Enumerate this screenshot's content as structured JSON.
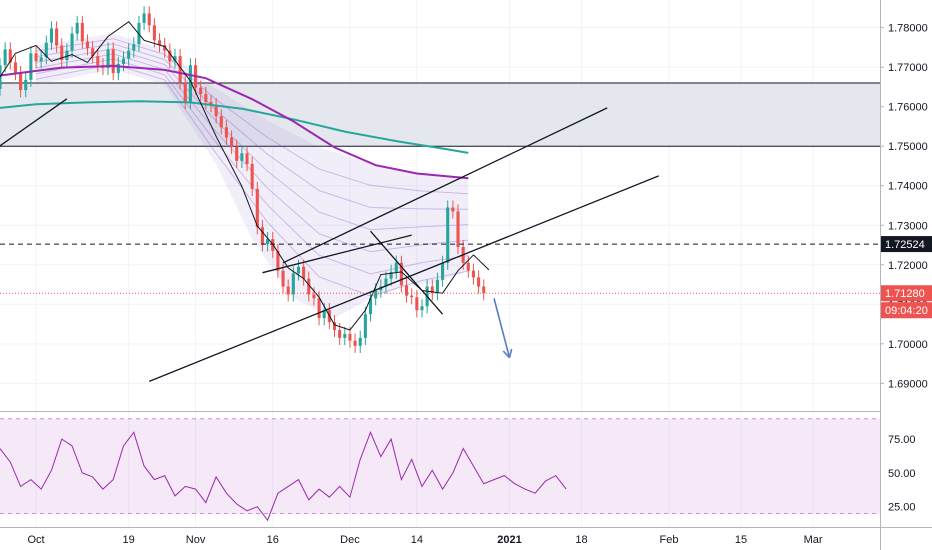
{
  "chart_data": {
    "type": "candlestick",
    "title": "",
    "price_axis": {
      "ticks": [
        "1.78000",
        "1.77000",
        "1.76000",
        "1.75000",
        "1.74000",
        "1.73000",
        "1.72000",
        "1.71000",
        "1.70000",
        "1.69000"
      ],
      "tick_values": [
        1.78,
        1.77,
        1.76,
        1.75,
        1.74,
        1.73,
        1.72,
        1.71,
        1.7,
        1.69
      ],
      "range": [
        1.683,
        1.787
      ]
    },
    "rsi_axis": {
      "ticks": [
        "75.00",
        "50.00",
        "25.00"
      ],
      "tick_values": [
        75,
        50,
        25
      ],
      "range": [
        10,
        95
      ]
    },
    "time_axis": {
      "labels": [
        "Oct",
        "19",
        "Nov",
        "16",
        "Dec",
        "14",
        "2021",
        "18",
        "Feb",
        "15",
        "Mar"
      ],
      "label_days": [
        0,
        18,
        31,
        46,
        61,
        74,
        92,
        106,
        123,
        137,
        151
      ],
      "bold_label": "2021"
    },
    "visible_range_days": [
      -7,
      164
    ],
    "horizontal_levels": {
      "dashed_level": {
        "value": 1.72524,
        "label": "1.72524",
        "color": "#131722"
      },
      "last_price": {
        "value": 1.7128,
        "label": "1.71280",
        "color": "#ef5350"
      },
      "countdown": {
        "label": "09:04:20",
        "color": "#ef5350"
      }
    },
    "zone": {
      "top": 1.766,
      "bottom": 1.75,
      "fill": "#e0e3eb"
    },
    "trendlines": [
      {
        "from": [
          22,
          1.6905
        ],
        "to": [
          121,
          1.7425
        ]
      },
      {
        "from": [
          -7,
          1.7501
        ],
        "to": [
          6,
          1.762
        ]
      },
      {
        "from": [
          48,
          1.7205
        ],
        "to": [
          111,
          1.7597
        ]
      },
      {
        "from": [
          44,
          1.718
        ],
        "to": [
          73,
          1.7275
        ]
      },
      {
        "from": [
          65,
          1.7285
        ],
        "to": [
          79,
          1.7075
        ]
      }
    ],
    "arrow": {
      "from": [
        89,
        1.7115
      ],
      "to": [
        92,
        1.6965
      ],
      "color": "#5b7cc4"
    },
    "moving_averages": [
      {
        "color": "#26a69a",
        "points": [
          [
            -7,
            1.7597
          ],
          [
            0,
            1.7606
          ],
          [
            10,
            1.7611
          ],
          [
            20,
            1.7614
          ],
          [
            30,
            1.7611
          ],
          [
            40,
            1.7595
          ],
          [
            50,
            1.7568
          ],
          [
            60,
            1.7537
          ],
          [
            70,
            1.7513
          ],
          [
            80,
            1.7492
          ],
          [
            84,
            1.7483
          ]
        ]
      },
      {
        "color": "#9c27b0",
        "points": [
          [
            -7,
            1.7679
          ],
          [
            5,
            1.7699
          ],
          [
            15,
            1.7703
          ],
          [
            25,
            1.7693
          ],
          [
            33,
            1.7672
          ],
          [
            42,
            1.7619
          ],
          [
            50,
            1.7563
          ],
          [
            58,
            1.7497
          ],
          [
            66,
            1.7452
          ],
          [
            74,
            1.7431
          ],
          [
            84,
            1.7419
          ]
        ]
      },
      {
        "color": "#131722",
        "points": [
          [
            -7,
            1.7675
          ],
          [
            -4,
            1.7735
          ],
          [
            0,
            1.7755
          ],
          [
            3,
            1.7715
          ],
          [
            7,
            1.7732
          ],
          [
            10,
            1.7712
          ],
          [
            14,
            1.7778
          ],
          [
            18,
            1.7815
          ],
          [
            21,
            1.7768
          ],
          [
            25,
            1.7752
          ],
          [
            30,
            1.7665
          ],
          [
            35,
            1.7525
          ],
          [
            40,
            1.7398
          ],
          [
            43,
            1.7298
          ],
          [
            46,
            1.7252
          ],
          [
            49,
            1.7192
          ],
          [
            52,
            1.7165
          ],
          [
            55,
            1.7118
          ],
          [
            58,
            1.7048
          ],
          [
            61,
            1.7035
          ],
          [
            64,
            1.7085
          ],
          [
            67,
            1.7175
          ],
          [
            71,
            1.7182
          ],
          [
            75,
            1.7135
          ],
          [
            79,
            1.7128
          ],
          [
            82,
            1.7185
          ],
          [
            85,
            1.7225
          ],
          [
            88,
            1.7187
          ]
        ]
      }
    ],
    "ribbon": {
      "from_day": 0,
      "to_day": 90,
      "upper": [
        [
          0,
          1.7755
        ],
        [
          15,
          1.7785
        ],
        [
          25,
          1.7745
        ],
        [
          35,
          1.7645
        ],
        [
          45,
          1.7565
        ],
        [
          55,
          1.7497
        ],
        [
          65,
          1.7457
        ],
        [
          75,
          1.7432
        ],
        [
          84,
          1.7419
        ]
      ],
      "lower": [
        [
          0,
          1.7655
        ],
        [
          15,
          1.7695
        ],
        [
          25,
          1.7655
        ],
        [
          35,
          1.7455
        ],
        [
          42,
          1.7265
        ],
        [
          50,
          1.7115
        ],
        [
          58,
          1.7065
        ],
        [
          65,
          1.7115
        ],
        [
          72,
          1.7145
        ],
        [
          78,
          1.7155
        ],
        [
          84,
          1.7185
        ]
      ]
    },
    "candles_daily_approx": {
      "start_day": -7,
      "close": [
        1.7705,
        1.7745,
        1.7712,
        1.7685,
        1.7642,
        1.7668,
        1.7735,
        1.7715,
        1.7725,
        1.7762,
        1.7798,
        1.7755,
        1.7718,
        1.7742,
        1.7785,
        1.7812,
        1.7765,
        1.7748,
        1.7728,
        1.7705,
        1.7698,
        1.7745,
        1.7685,
        1.7708,
        1.7722,
        1.7742,
        1.7758,
        1.7812,
        1.7836,
        1.7806,
        1.7768,
        1.7756,
        1.7742,
        1.7715,
        1.7728,
        1.7662,
        1.7612,
        1.7705,
        1.7648,
        1.7632,
        1.7612,
        1.7604,
        1.7576,
        1.7548,
        1.7522,
        1.7498,
        1.7463,
        1.7482,
        1.7455,
        1.7392,
        1.7295,
        1.7252,
        1.7265,
        1.7235,
        1.7185,
        1.7145,
        1.7125,
        1.7178,
        1.7195,
        1.7165,
        1.7125,
        1.7115,
        1.7065,
        1.7085,
        1.7055,
        1.7035,
        1.7015,
        1.7025,
        1.7008,
        1.6995,
        1.7015,
        1.7075,
        1.7115,
        1.7135,
        1.7145,
        1.7165,
        1.7182,
        1.7205,
        1.7148,
        1.7122,
        1.7118,
        1.7085,
        1.7095,
        1.7145,
        1.7128,
        1.7162,
        1.7205,
        1.7345,
        1.7335,
        1.7245,
        1.7205,
        1.7185,
        1.7168,
        1.7145,
        1.7128
      ],
      "open": [
        1.7645,
        1.7705,
        1.7745,
        1.7712,
        1.7685,
        1.7642,
        1.7668,
        1.7735,
        1.7715,
        1.7725,
        1.7762,
        1.7798,
        1.7755,
        1.7718,
        1.7742,
        1.7785,
        1.7812,
        1.7765,
        1.7748,
        1.7728,
        1.7705,
        1.7698,
        1.7745,
        1.7685,
        1.7708,
        1.7722,
        1.7742,
        1.7758,
        1.7812,
        1.7836,
        1.7806,
        1.7768,
        1.7756,
        1.7742,
        1.7715,
        1.7728,
        1.7662,
        1.7612,
        1.7705,
        1.7648,
        1.7632,
        1.7612,
        1.7604,
        1.7576,
        1.7548,
        1.7522,
        1.7498,
        1.7463,
        1.7482,
        1.7455,
        1.7392,
        1.7295,
        1.7252,
        1.7265,
        1.7235,
        1.7185,
        1.7145,
        1.7125,
        1.7178,
        1.7195,
        1.7165,
        1.7125,
        1.7115,
        1.7065,
        1.7085,
        1.7055,
        1.7035,
        1.7015,
        1.7025,
        1.7008,
        1.6995,
        1.7015,
        1.7075,
        1.7115,
        1.7135,
        1.7145,
        1.7165,
        1.7182,
        1.7205,
        1.7148,
        1.7122,
        1.7118,
        1.7085,
        1.7095,
        1.7145,
        1.7128,
        1.7162,
        1.7205,
        1.7345,
        1.7335,
        1.7245,
        1.7205,
        1.7185,
        1.7168,
        1.7145
      ],
      "up_color": "#26a69a",
      "down_color": "#ef5350"
    },
    "rsi": {
      "color": "#9c27b0",
      "band_upper": 90,
      "band_lower": 20,
      "points": [
        [
          -7,
          68
        ],
        [
          -5,
          58
        ],
        [
          -3,
          40
        ],
        [
          -1,
          45
        ],
        [
          1,
          38
        ],
        [
          3,
          52
        ],
        [
          5,
          75
        ],
        [
          7,
          70
        ],
        [
          9,
          50
        ],
        [
          11,
          47
        ],
        [
          13,
          38
        ],
        [
          15,
          45
        ],
        [
          17,
          70
        ],
        [
          19,
          80
        ],
        [
          21,
          55
        ],
        [
          23,
          45
        ],
        [
          25,
          48
        ],
        [
          27,
          33
        ],
        [
          29,
          40
        ],
        [
          31,
          38
        ],
        [
          33,
          28
        ],
        [
          35,
          47
        ],
        [
          37,
          35
        ],
        [
          39,
          27
        ],
        [
          41,
          22
        ],
        [
          43,
          25
        ],
        [
          45,
          15
        ],
        [
          47,
          35
        ],
        [
          49,
          40
        ],
        [
          51,
          45
        ],
        [
          53,
          30
        ],
        [
          55,
          38
        ],
        [
          57,
          32
        ],
        [
          59,
          40
        ],
        [
          61,
          32
        ],
        [
          63,
          60
        ],
        [
          65,
          80
        ],
        [
          67,
          62
        ],
        [
          69,
          75
        ],
        [
          71,
          45
        ],
        [
          73,
          60
        ],
        [
          75,
          40
        ],
        [
          77,
          52
        ],
        [
          79,
          38
        ],
        [
          81,
          50
        ],
        [
          83,
          68
        ],
        [
          85,
          55
        ],
        [
          87,
          42
        ],
        [
          89,
          45
        ],
        [
          91,
          48
        ],
        [
          93,
          42
        ],
        [
          95,
          38
        ],
        [
          97,
          35
        ],
        [
          99,
          44
        ],
        [
          101,
          48
        ],
        [
          103,
          38
        ]
      ]
    }
  }
}
